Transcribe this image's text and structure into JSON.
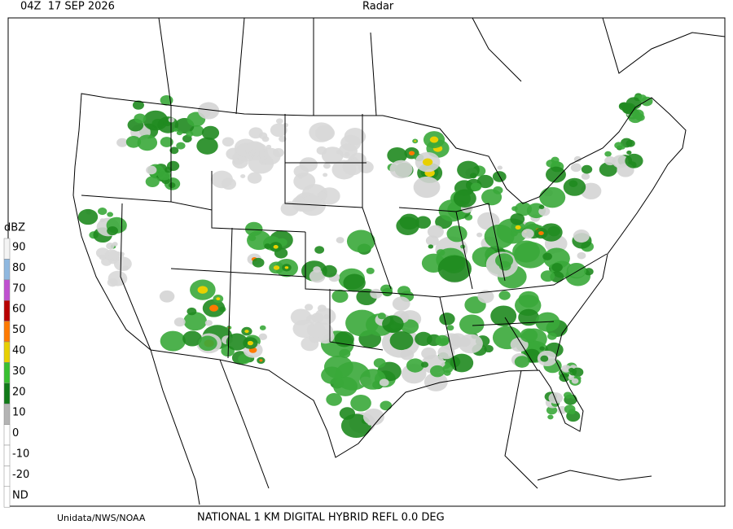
{
  "header": {
    "time": "04Z  17 SEP 2026",
    "title": "Radar"
  },
  "legend": {
    "unit": "dBZ",
    "entries": [
      {
        "label": "90",
        "color": "#f4f4f4"
      },
      {
        "label": "80",
        "color": "#8fb8e0"
      },
      {
        "label": "70",
        "color": "#c050d0"
      },
      {
        "label": "60",
        "color": "#b80000"
      },
      {
        "label": "50",
        "color": "#ff7a00"
      },
      {
        "label": "40",
        "color": "#e8d000"
      },
      {
        "label": "30",
        "color": "#38c030"
      },
      {
        "label": "20",
        "color": "#107a18"
      },
      {
        "label": "10",
        "color": "#b4b4b4"
      },
      {
        "label": "0",
        "color": "#ffffff"
      },
      {
        "label": "-10",
        "color": "#ffffff"
      },
      {
        "label": "-20",
        "color": "#ffffff"
      },
      {
        "label": "ND",
        "color": "#ffffff"
      }
    ]
  },
  "footer": {
    "credit": "Unidata/NWS/NOAA",
    "product": "NATIONAL 1 KM DIGITAL HYBRID REFL 0.0 DEG"
  }
}
